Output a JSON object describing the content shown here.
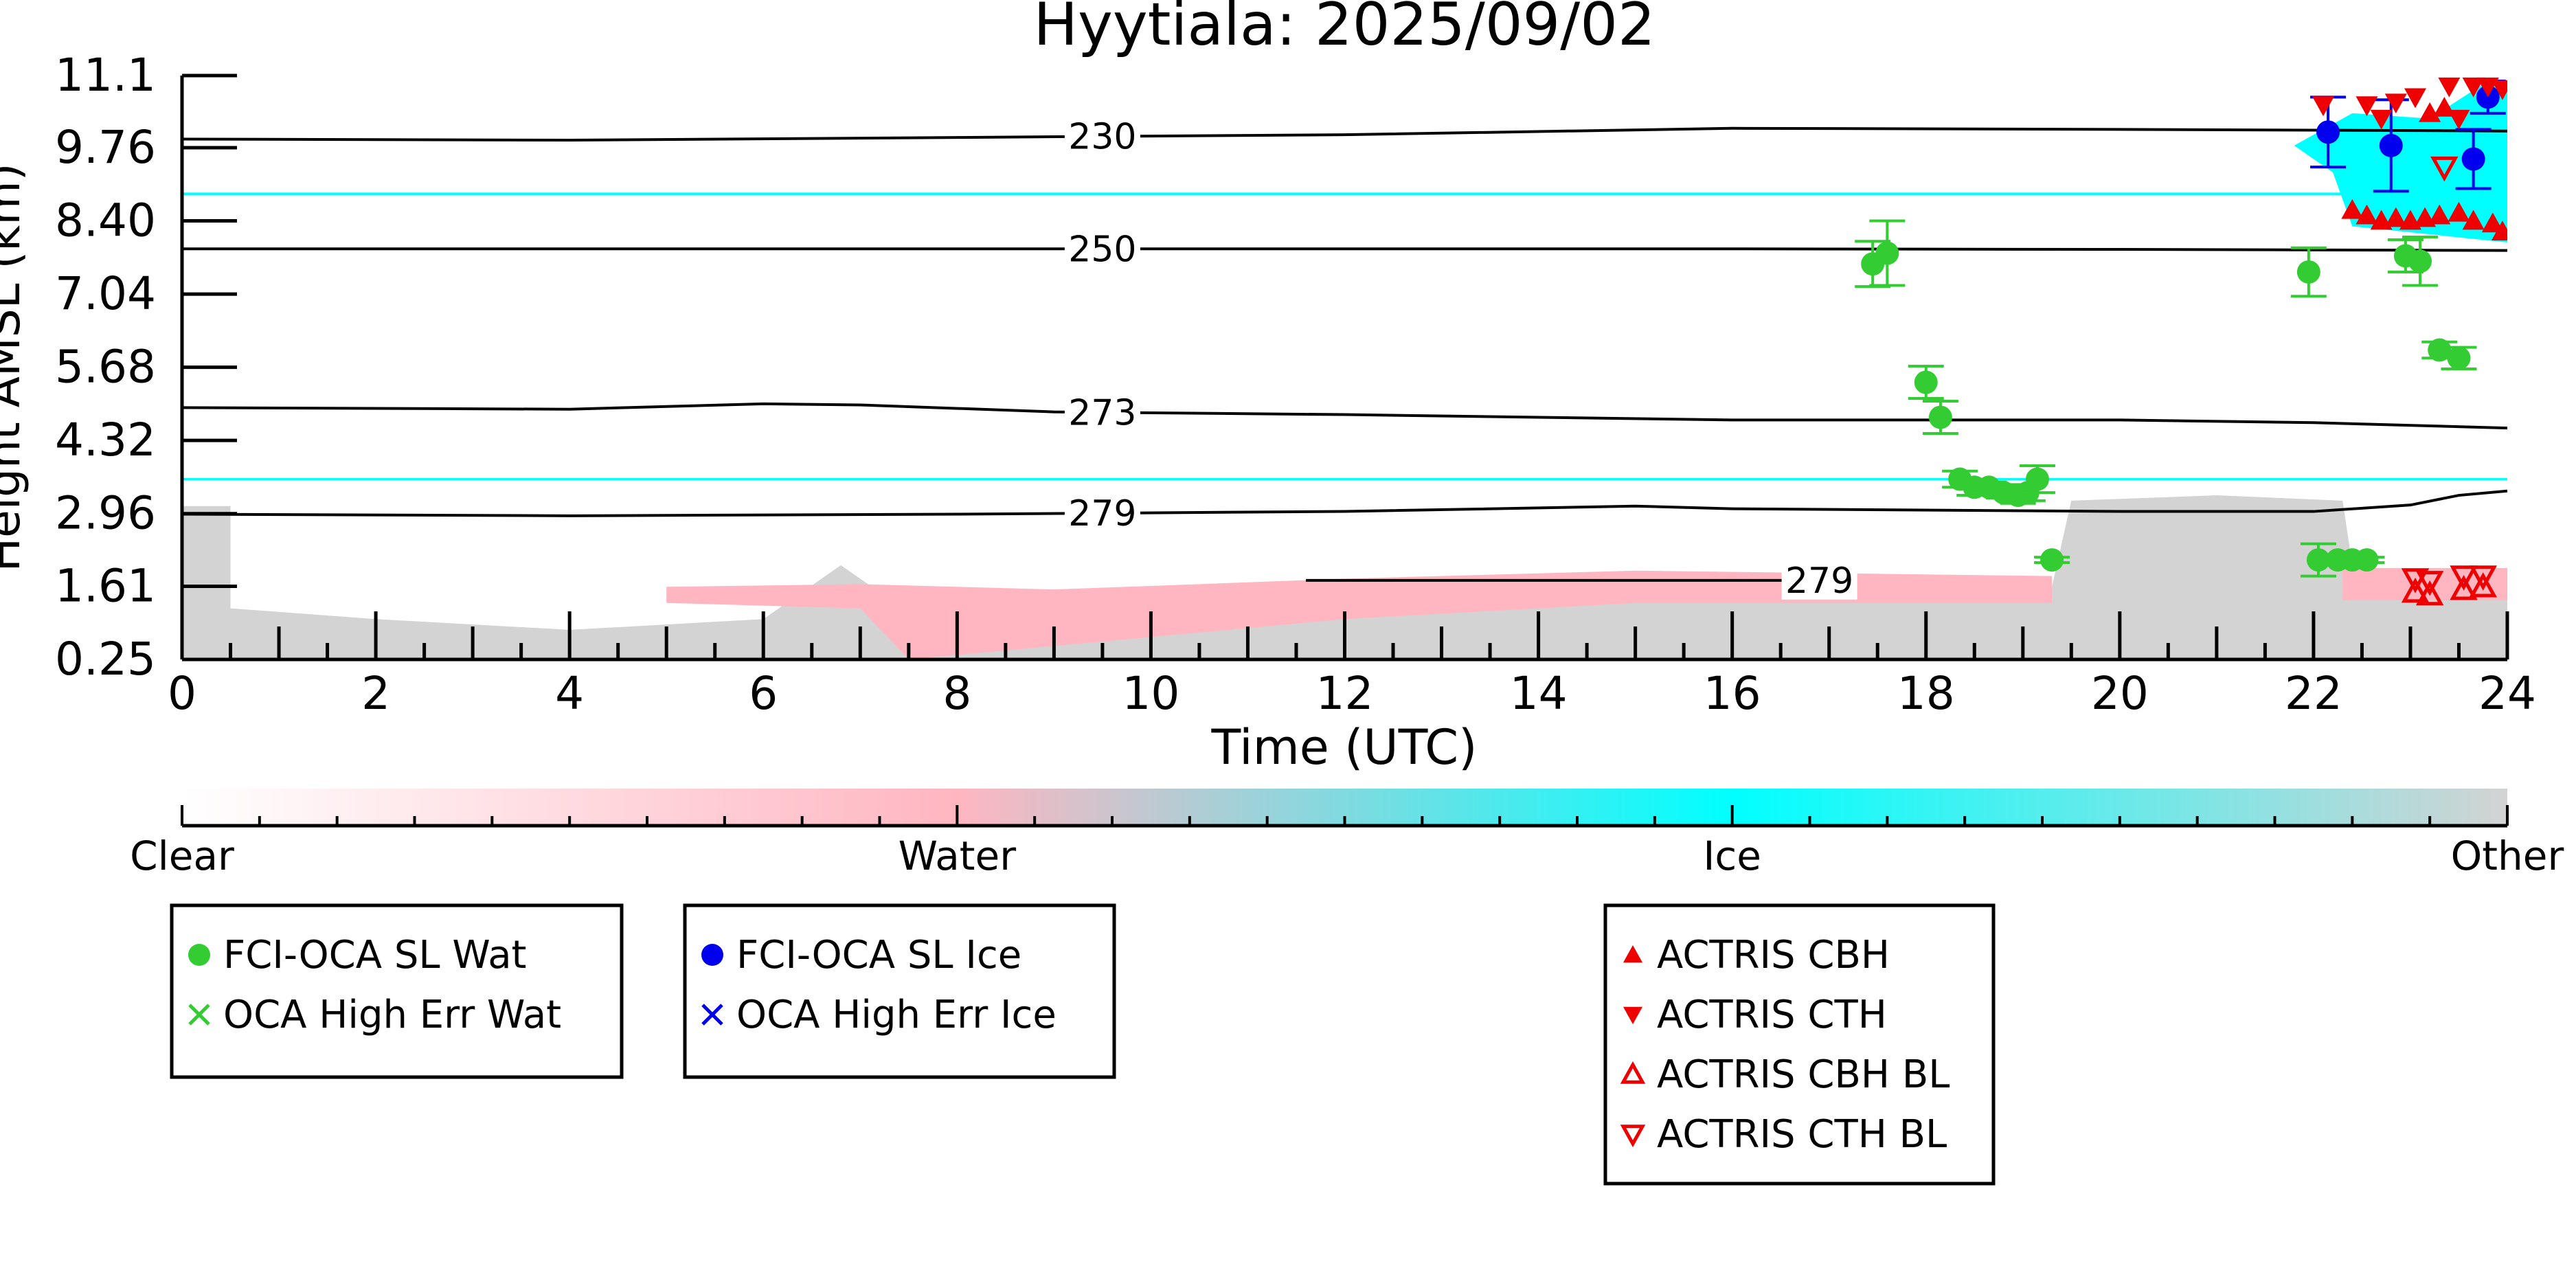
{
  "chart_data": {
    "type": "scatter",
    "title": "Hyytiala: 2025/09/02",
    "xlabel": "Time (UTC)",
    "ylabel": "Height AMSL (km)",
    "xlim": [
      0,
      24
    ],
    "ylim": [
      0.25,
      11.1
    ],
    "x_ticks": [
      0,
      2,
      4,
      6,
      8,
      10,
      12,
      14,
      16,
      18,
      20,
      22,
      24
    ],
    "y_ticks": [
      0.25,
      1.61,
      2.96,
      4.32,
      5.68,
      7.04,
      8.4,
      9.76,
      11.1
    ],
    "y_tick_labels": [
      "0.25",
      "1.61",
      "2.96",
      "4.32",
      "5.68",
      "7.04",
      "8.40",
      "9.76",
      "11.1"
    ],
    "grid": false,
    "colors": {
      "water_series": "#33cc33",
      "ice_series": "#0000ee",
      "actris": "#ee0000",
      "cloud_water": "#ffb6c1",
      "cloud_ice": "#00ffff",
      "cloud_other": "#d3d3d3",
      "contour": "#000000"
    },
    "colorbar": {
      "labels": [
        "Clear",
        "Water",
        "Ice",
        "Other"
      ],
      "stops": [
        "#ffffff",
        "#ffb6c1",
        "#00ffff",
        "#d3d3d3"
      ]
    },
    "contours": [
      {
        "label": "230",
        "label_x": 9.5,
        "points": [
          [
            0,
            9.92
          ],
          [
            4,
            9.9
          ],
          [
            8,
            9.95
          ],
          [
            12,
            10.0
          ],
          [
            16,
            10.12
          ],
          [
            20,
            10.1
          ],
          [
            24,
            10.07
          ]
        ]
      },
      {
        "label": "250",
        "label_x": 9.5,
        "points": [
          [
            0,
            7.88
          ],
          [
            4,
            7.88
          ],
          [
            8,
            7.88
          ],
          [
            12,
            7.88
          ],
          [
            16,
            7.88
          ],
          [
            20,
            7.87
          ],
          [
            24,
            7.85
          ]
        ]
      },
      {
        "label": "273",
        "label_x": 9.5,
        "points": [
          [
            0,
            4.93
          ],
          [
            4,
            4.9
          ],
          [
            6,
            5.0
          ],
          [
            7,
            4.98
          ],
          [
            9,
            4.85
          ],
          [
            12,
            4.8
          ],
          [
            16,
            4.7
          ],
          [
            20,
            4.7
          ],
          [
            22,
            4.65
          ],
          [
            24,
            4.55
          ]
        ]
      },
      {
        "label": "279",
        "label_x": 9.5,
        "points": [
          [
            0,
            2.95
          ],
          [
            4,
            2.92
          ],
          [
            8,
            2.95
          ],
          [
            12,
            3.0
          ],
          [
            15,
            3.1
          ],
          [
            16,
            3.05
          ],
          [
            20,
            3.0
          ],
          [
            22,
            3.0
          ],
          [
            23,
            3.12
          ],
          [
            23.5,
            3.3
          ],
          [
            24,
            3.38
          ]
        ]
      },
      {
        "label": "279",
        "label_x": 16.9,
        "points": [
          [
            11.6,
            1.72
          ],
          [
            12.2,
            1.72
          ],
          [
            13.8,
            1.72
          ],
          [
            15,
            1.72
          ],
          [
            16.5,
            1.72
          ],
          [
            17.2,
            1.72
          ]
        ]
      }
    ],
    "series": [
      {
        "name": "FCI-OCA SL Wat",
        "marker": "circle",
        "x": [
          17.45,
          17.6,
          18.0,
          18.15,
          18.35,
          18.5,
          18.65,
          18.8,
          18.95,
          19.05,
          19.15,
          19.3,
          21.95,
          22.05,
          22.25,
          22.4,
          22.55,
          22.95,
          23.1,
          23.3,
          23.5
        ],
        "y": [
          7.6,
          7.8,
          5.4,
          4.75,
          3.6,
          3.45,
          3.45,
          3.35,
          3.3,
          3.35,
          3.6,
          2.1,
          7.45,
          2.1,
          2.1,
          2.1,
          2.1,
          7.75,
          7.65,
          6.0,
          5.85
        ],
        "err": [
          0.42,
          0.6,
          0.3,
          0.3,
          0.15,
          0.15,
          0.1,
          0.1,
          0.15,
          0.15,
          0.25,
          0.05,
          0.45,
          0.3,
          0.1,
          0.1,
          0.05,
          0.3,
          0.45,
          0.15,
          0.2
        ]
      },
      {
        "name": "OCA High Err Wat",
        "marker": "x",
        "x": [],
        "y": []
      },
      {
        "name": "FCI-OCA SL Ice",
        "marker": "circle",
        "x": [
          22.15,
          22.8,
          23.65,
          23.8
        ],
        "y": [
          10.05,
          9.8,
          9.55,
          10.7
        ],
        "err": [
          0.65,
          0.85,
          0.55,
          0.3
        ]
      },
      {
        "name": "OCA High Err Ice",
        "marker": "x",
        "x": [],
        "y": []
      },
      {
        "name": "ACTRIS CBH",
        "marker": "triangle-up",
        "x": [
          22.4,
          22.55,
          22.7,
          22.85,
          23.0,
          23.15,
          23.3,
          23.5,
          23.65,
          23.85,
          23.95,
          23.2,
          23.35
        ],
        "y": [
          8.6,
          8.5,
          8.4,
          8.45,
          8.4,
          8.45,
          8.5,
          8.55,
          8.4,
          8.35,
          8.2,
          10.4,
          10.5
        ]
      },
      {
        "name": "ACTRIS CTH",
        "marker": "triangle-down",
        "x": [
          22.1,
          22.55,
          22.85,
          23.05,
          23.4,
          23.65,
          23.8,
          23.95,
          22.7,
          23.5
        ],
        "y": [
          10.55,
          10.55,
          10.6,
          10.7,
          10.9,
          10.9,
          10.9,
          10.85,
          10.3,
          10.3
        ]
      },
      {
        "name": "ACTRIS CBH BL",
        "marker": "triangle-up-open",
        "x": [
          23.05,
          23.2,
          23.55,
          23.75
        ],
        "y": [
          1.5,
          1.45,
          1.55,
          1.6
        ]
      },
      {
        "name": "ACTRIS CTH BL",
        "marker": "triangle-down-open",
        "x": [
          23.05,
          23.2,
          23.35,
          23.55,
          23.75
        ],
        "y": [
          1.75,
          1.7,
          9.4,
          1.8,
          1.8
        ]
      }
    ],
    "legend_placement": "bottom",
    "legend_groups": [
      [
        "FCI-OCA SL Wat",
        "OCA High Err Wat"
      ],
      [
        "FCI-OCA SL Ice",
        "OCA High Err Ice"
      ],
      [
        "ACTRIS CBH",
        "ACTRIS CTH",
        "ACTRIS CBH BL",
        "ACTRIS CTH BL"
      ]
    ]
  }
}
